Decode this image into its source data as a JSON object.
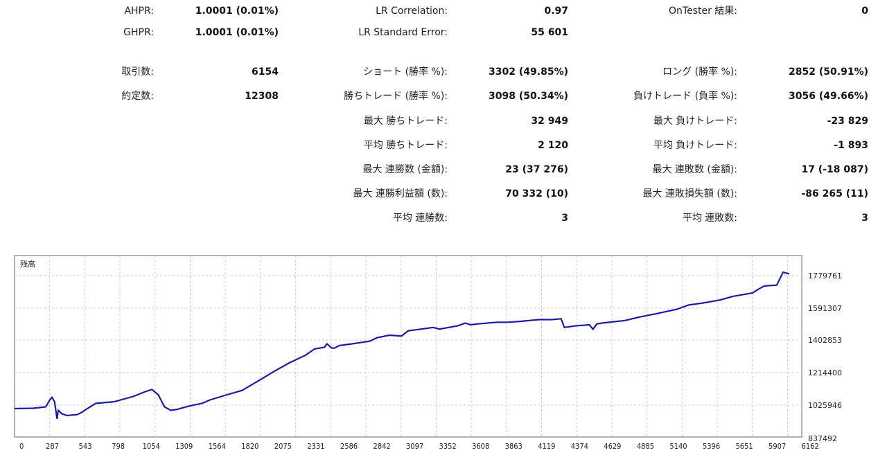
{
  "stats": {
    "ahpr": {
      "label": "AHPR:",
      "value": "1.0001 (0.01%)"
    },
    "ghpr": {
      "label": "GHPR:",
      "value": "1.0001 (0.01%)"
    },
    "lr_correlation": {
      "label": "LR Correlation:",
      "value": "0.97"
    },
    "lr_std_error": {
      "label": "LR Standard Error:",
      "value": "55 601"
    },
    "ontester": {
      "label": "OnTester 結果:",
      "value": "0"
    },
    "trades": {
      "label": "取引数:",
      "value": "6154"
    },
    "deals": {
      "label": "約定数:",
      "value": "12308"
    },
    "short": {
      "label": "ショート (勝率 %):",
      "value": "3302 (49.85%)"
    },
    "long": {
      "label": "ロング (勝率 %):",
      "value": "2852 (50.91%)"
    },
    "win_trades": {
      "label": "勝ちトレード (勝率 %):",
      "value": "3098 (50.34%)"
    },
    "loss_trades": {
      "label": "負けトレード (負率 %):",
      "value": "3056 (49.66%)"
    },
    "max_win": {
      "label": "最大 勝ちトレード:",
      "value": "32 949"
    },
    "max_loss": {
      "label": "最大 負けトレード:",
      "value": "-23 829"
    },
    "avg_win": {
      "label": "平均 勝ちトレード:",
      "value": "2 120"
    },
    "avg_loss": {
      "label": "平均 負けトレード:",
      "value": "-1 893"
    },
    "max_consec_wins": {
      "label": "最大 連勝数 (金額):",
      "value": "23 (37 276)"
    },
    "max_consec_losses": {
      "label": "最大 連敗数 (金額):",
      "value": "17 (-18 087)"
    },
    "max_consec_profit": {
      "label": "最大 連勝利益額 (数):",
      "value": "70 332 (10)"
    },
    "max_consec_loss_amt": {
      "label": "最大 連敗損失額 (数):",
      "value": "-86 265 (11)"
    },
    "avg_consec_wins": {
      "label": "平均 連勝数:",
      "value": "3"
    },
    "avg_consec_losses": {
      "label": "平均 連敗数:",
      "value": "3"
    }
  },
  "colors": {
    "line": "#1a1aa6",
    "grid": "#c8c8c8",
    "frame": "#666666"
  },
  "chart_data": {
    "type": "line",
    "title": "残高",
    "x_ticks": [
      "0",
      "287",
      "543",
      "798",
      "1054",
      "1309",
      "1564",
      "1820",
      "2075",
      "2331",
      "2586",
      "2842",
      "3097",
      "3352",
      "3608",
      "3863",
      "4119",
      "4374",
      "4629",
      "4885",
      "5140",
      "5396",
      "5651",
      "5907",
      "6162"
    ],
    "y_ticks": [
      "1779761",
      "1591307",
      "1402853",
      "1214400",
      "1025946",
      "837492"
    ],
    "xlim": [
      0,
      6300
    ],
    "ylim": [
      837492,
      1850000
    ],
    "series": [
      {
        "x": [
          0,
          150,
          250,
          280,
          300,
          320,
          340,
          350,
          380,
          420,
          500,
          543,
          560,
          650,
          798,
          950,
          1054,
          1100,
          1150,
          1200,
          1250,
          1300,
          1350,
          1400,
          1500,
          1564,
          1700,
          1820,
          1950,
          2075,
          2200,
          2331,
          2400,
          2480,
          2500,
          2540,
          2560,
          2600,
          2700,
          2842,
          2900,
          3000,
          3097,
          3150,
          3250,
          3352,
          3400,
          3550,
          3608,
          3650,
          3700,
          3863,
          3950,
          4050,
          4119,
          4200,
          4300,
          4374,
          4400,
          4500,
          4600,
          4629,
          4660,
          4700,
          4885,
          5000,
          5140,
          5300,
          5396,
          5500,
          5651,
          5750,
          5907,
          5950,
          6000,
          6100,
          6150,
          6200
        ],
        "y": [
          1010000,
          1012000,
          1020000,
          1058000,
          1075000,
          1050000,
          950000,
          1000000,
          980000,
          970000,
          975000,
          990000,
          1000000,
          1040000,
          1050000,
          1080000,
          1110000,
          1120000,
          1090000,
          1020000,
          1000000,
          1005000,
          1015000,
          1025000,
          1040000,
          1060000,
          1090000,
          1115000,
          1170000,
          1225000,
          1275000,
          1320000,
          1355000,
          1365000,
          1385000,
          1360000,
          1360000,
          1375000,
          1385000,
          1400000,
          1420000,
          1435000,
          1430000,
          1460000,
          1470000,
          1480000,
          1470000,
          1490000,
          1505000,
          1495000,
          1500000,
          1510000,
          1510000,
          1515000,
          1520000,
          1525000,
          1525000,
          1530000,
          1480000,
          1490000,
          1495000,
          1470000,
          1500000,
          1505000,
          1520000,
          1540000,
          1560000,
          1585000,
          1610000,
          1620000,
          1640000,
          1660000,
          1680000,
          1700000,
          1720000,
          1725000,
          1800000,
          1790000
        ]
      }
    ]
  }
}
